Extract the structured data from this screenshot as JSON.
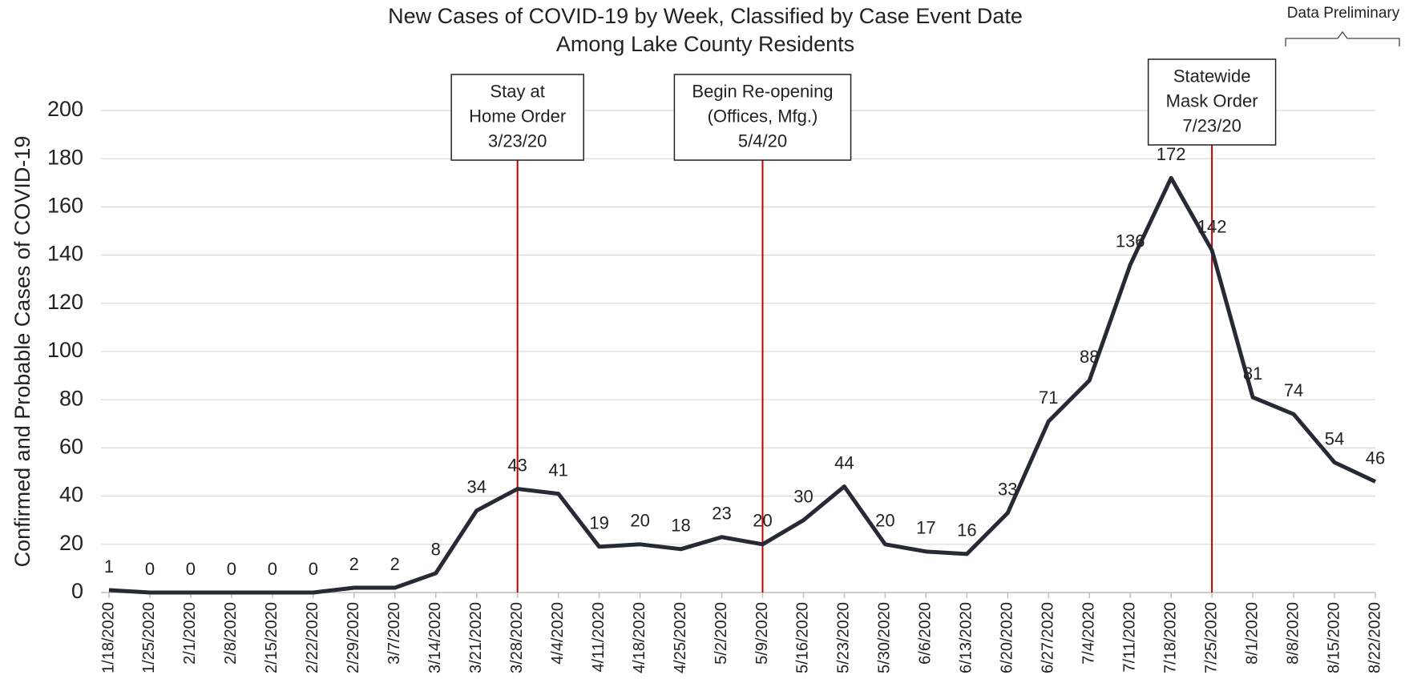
{
  "chart_data": {
    "type": "line",
    "title": [
      "New Cases of COVID-19 by Week, Classified by Case Event Date",
      "Among Lake County Residents"
    ],
    "y_label": "Confirmed and Probable Cases of COVID-19",
    "categories": [
      "1/18/2020",
      "1/25/2020",
      "2/1/2020",
      "2/8/2020",
      "2/15/2020",
      "2/22/2020",
      "2/29/2020",
      "3/7/2020",
      "3/14/2020",
      "3/21/2020",
      "3/28/2020",
      "4/4/2020",
      "4/11/2020",
      "4/18/2020",
      "4/25/2020",
      "5/2/2020",
      "5/9/2020",
      "5/16/2020",
      "5/23/2020",
      "5/30/2020",
      "6/6/2020",
      "6/13/2020",
      "6/20/2020",
      "6/27/2020",
      "7/4/2020",
      "7/11/2020",
      "7/18/2020",
      "7/25/2020",
      "8/1/2020",
      "8/8/2020",
      "8/15/2020",
      "8/22/2020"
    ],
    "values": [
      1,
      0,
      0,
      0,
      0,
      0,
      2,
      2,
      8,
      34,
      43,
      41,
      19,
      20,
      18,
      23,
      20,
      30,
      44,
      20,
      17,
      16,
      33,
      71,
      88,
      136,
      172,
      142,
      81,
      74,
      54,
      46
    ],
    "color": "#262a35",
    "ylim": [
      0,
      200
    ],
    "yticks": [
      0,
      20,
      40,
      60,
      80,
      100,
      120,
      140,
      160,
      180,
      200
    ],
    "grid": true,
    "annotations": [
      {
        "x": "3/28/2020",
        "lines": [
          "Stay at",
          "Home Order",
          "3/23/20"
        ],
        "color": "#c00000"
      },
      {
        "x": "5/9/2020",
        "lines": [
          "Begin Re-opening",
          "(Offices, Mfg.)",
          "5/4/20"
        ],
        "color": "#c00000"
      },
      {
        "x": "7/25/2020",
        "lines": [
          "Statewide",
          "Mask Order",
          "7/23/20"
        ],
        "color": "#c00000"
      }
    ],
    "preliminary_note": "Data Preliminary"
  }
}
